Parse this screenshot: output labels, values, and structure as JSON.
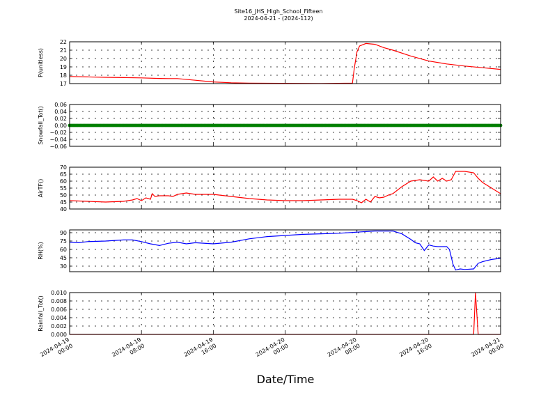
{
  "figure": {
    "title_line1": "Site16_JHS_High_School_Fifteen",
    "title_line2": "2024-04-21 - (2024-112)",
    "xlabel": "Date/Time"
  },
  "x_ticks": [
    {
      "line1": "2024-04-19",
      "line2": "00:00",
      "hour": 0
    },
    {
      "line1": "2024-04-19",
      "line2": "08:00",
      "hour": 8
    },
    {
      "line1": "2024-04-19",
      "line2": "16:00",
      "hour": 16
    },
    {
      "line1": "2024-04-20",
      "line2": "00:00",
      "hour": 24
    },
    {
      "line1": "2024-04-20",
      "line2": "08:00",
      "hour": 32
    },
    {
      "line1": "2024-04-20",
      "line2": "16:00",
      "hour": 40
    },
    {
      "line1": "2024-04-21",
      "line2": "00:00",
      "hour": 48
    }
  ],
  "chart_data": [
    {
      "type": "line",
      "ylabel": "P(unitless)",
      "ylim": [
        17,
        22
      ],
      "yticks": [
        "17",
        "18",
        "19",
        "20",
        "21",
        "22"
      ],
      "grid": true,
      "color": "#ff0000",
      "x_hours": [
        0,
        2,
        4,
        6,
        8,
        10,
        11,
        12,
        14,
        16,
        18,
        20,
        24,
        28,
        31.5,
        31.7,
        32,
        32.3,
        33,
        34,
        35,
        36,
        38,
        40,
        42,
        44,
        46,
        48
      ],
      "values": [
        17.85,
        17.8,
        17.75,
        17.72,
        17.68,
        17.62,
        17.6,
        17.6,
        17.4,
        17.2,
        17.1,
        17.05,
        17.03,
        17.02,
        17.05,
        18.8,
        20.8,
        21.5,
        21.8,
        21.7,
        21.3,
        21.0,
        20.3,
        19.7,
        19.35,
        19.1,
        18.9,
        18.7
      ]
    },
    {
      "type": "scatter",
      "ylabel": "Snowfall_Tot()",
      "ylim": [
        -0.06,
        0.06
      ],
      "yticks": [
        "−0.06",
        "−0.04",
        "−0.02",
        "0.00",
        "0.02",
        "0.04",
        "0.06"
      ],
      "grid": true,
      "color": "#008000",
      "x_range_hours": [
        0,
        48
      ],
      "constant_value": 0.0
    },
    {
      "type": "line",
      "ylabel": "AirTF()",
      "ylim": [
        40,
        70
      ],
      "yticks": [
        "40",
        "45",
        "50",
        "55",
        "60",
        "65",
        "70"
      ],
      "grid": true,
      "color": "#ff0000",
      "x_hours": [
        0,
        2,
        4,
        6,
        7,
        7.5,
        8,
        8.5,
        9,
        9.2,
        9.5,
        10,
        11,
        11.5,
        12,
        13,
        14,
        16,
        18,
        20,
        22,
        24,
        26,
        28,
        30,
        31.5,
        32,
        32.5,
        33,
        33.5,
        34,
        34.5,
        35,
        35.5,
        36,
        37,
        38,
        39,
        40,
        40.5,
        41,
        41.5,
        42,
        42.5,
        43,
        43.5,
        44,
        45,
        45.5,
        46,
        47,
        48
      ],
      "values": [
        46,
        45.5,
        45,
        45.5,
        46.5,
        47.5,
        46,
        48,
        47,
        51,
        49,
        49.5,
        49.5,
        49,
        50.5,
        51.5,
        50.5,
        50.5,
        49,
        47.5,
        46.5,
        46,
        46,
        46.5,
        47,
        47,
        46,
        44.5,
        47,
        45,
        49,
        48,
        48.5,
        50,
        51,
        56,
        60,
        61,
        60,
        63,
        60,
        62,
        60,
        61,
        67,
        67,
        67,
        66,
        62,
        59,
        55,
        51
      ]
    },
    {
      "type": "line",
      "ylabel": "RH(%)",
      "ylim": [
        20,
        95
      ],
      "yticks": [
        "30",
        "45",
        "60",
        "75",
        "90"
      ],
      "grid": true,
      "color": "#0000ff",
      "x_hours": [
        0,
        1,
        2,
        4,
        6,
        7,
        8,
        9,
        10,
        11,
        12,
        13,
        14,
        16,
        18,
        20,
        22,
        24,
        26,
        28,
        30,
        32,
        34,
        35,
        36,
        37,
        38,
        38.5,
        39,
        39.5,
        40,
        40.5,
        41,
        42,
        42.3,
        42.7,
        43,
        43.5,
        44,
        45,
        45.5,
        46,
        47,
        48
      ],
      "values": [
        73,
        72,
        74,
        75,
        77,
        77,
        74,
        70,
        67,
        71,
        73,
        70,
        72,
        70,
        73,
        79,
        83,
        85,
        87,
        88,
        89,
        91,
        93,
        93,
        93,
        88,
        78,
        72,
        70,
        58,
        68,
        66,
        65,
        65,
        60,
        33,
        23,
        25,
        24,
        25,
        35,
        38,
        42,
        44
      ]
    },
    {
      "type": "line",
      "ylabel": "Rainfall_Tot()",
      "ylim": [
        0.0,
        0.01
      ],
      "yticks": [
        "0.000",
        "0.002",
        "0.004",
        "0.006",
        "0.008",
        "0.010"
      ],
      "grid": true,
      "color": "#ff0000",
      "x_hours": [
        0,
        45.0,
        45.2,
        45.5,
        48
      ],
      "values": [
        0,
        0,
        0.01,
        0,
        0
      ]
    }
  ]
}
